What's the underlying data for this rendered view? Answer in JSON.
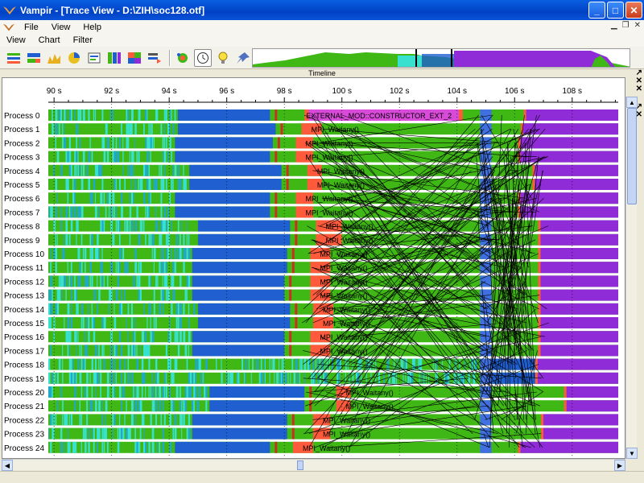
{
  "window": {
    "title": "Vampir - [Trace View - D:\\ZIH\\soc128.otf]"
  },
  "menubar_top": {
    "items": [
      "File",
      "View",
      "Help"
    ]
  },
  "menubar_chart": {
    "items": [
      "View",
      "Chart",
      "Filter"
    ]
  },
  "toolbar": {
    "buttons": [
      {
        "name": "master-timeline-icon",
        "glyph": "▤"
      },
      {
        "name": "process-timeline-icon",
        "glyph": "▦"
      },
      {
        "name": "counter-timeline-icon",
        "glyph": "▥"
      },
      {
        "name": "function-summary-icon",
        "glyph": "◕"
      },
      {
        "name": "message-summary-icon",
        "glyph": "▣"
      },
      {
        "name": "process-summary-icon",
        "glyph": "▤"
      },
      {
        "name": "communication-matrix-icon",
        "glyph": "▦"
      },
      {
        "name": "io-events-icon",
        "glyph": "▧"
      },
      {
        "name": "call-tree-icon",
        "glyph": "✿"
      },
      {
        "name": "clock-icon",
        "glyph": "◷"
      },
      {
        "name": "lightbulb-icon",
        "glyph": "☀"
      },
      {
        "name": "pin-icon",
        "glyph": "✎"
      }
    ]
  },
  "timeline_panel": {
    "title": "Timeline"
  },
  "time_axis": {
    "unit": "s",
    "ticks": [
      "90 s",
      "92 s",
      "94 s",
      "96 s",
      "98 s",
      "100 s",
      "102 s",
      "104 s",
      "106 s",
      "108 s"
    ],
    "start": 89.8,
    "end": 109.6
  },
  "colors": {
    "application": "#3fb816",
    "mpi": "#ff5a3c",
    "compute_blue": "#1f5fd0",
    "external": "#d84ad8",
    "purple": "#8f2cd8",
    "cyan": "#38e0d0",
    "message_line": "#000000"
  },
  "labels": {
    "external_mod": "EXTERNAL_MOD::CONSTRUCTOR_EXT_2",
    "waitany": "MPI_Waitany()"
  },
  "processes": [
    {
      "name": "Process 0",
      "blue": [
        94.3,
        97.5
      ],
      "mpi": [
        98.7,
        104.2
      ],
      "label": "EXTERNAL_MOD::CONSTRUCTOR_EXT_2",
      "purple": 106.4
    },
    {
      "name": "Process 1",
      "blue": [
        94.3,
        97.7
      ],
      "mpi": [
        98.6,
        99.3
      ],
      "label": "MPI_Waitany()",
      "purple": 106.3
    },
    {
      "name": "Process 2",
      "blue": [
        94.2,
        97.6
      ],
      "mpi": [
        98.4,
        99.0
      ],
      "label": "MPI_Waitany()",
      "purple": 106.2
    },
    {
      "name": "Process 3",
      "blue": [
        94.2,
        97.5
      ],
      "mpi": [
        98.4,
        99.0
      ],
      "label": "MPI_Waitany()",
      "purple": 106.2
    },
    {
      "name": "Process 4",
      "blue": [
        94.7,
        97.9
      ],
      "mpi": [
        98.8,
        99.3
      ],
      "label": "MPI_Waitany()",
      "purple": 106.7
    },
    {
      "name": "Process 5",
      "blue": [
        94.7,
        97.9
      ],
      "mpi": [
        98.8,
        99.3
      ],
      "label": "MPI_Waitany()",
      "purple": 106.7
    },
    {
      "name": "Process 6",
      "blue": [
        94.2,
        97.5
      ],
      "mpi": [
        98.4,
        99.0
      ],
      "label": "MPI_Waitany()",
      "purple": 106.2
    },
    {
      "name": "Process 7",
      "blue": [
        94.2,
        97.5
      ],
      "mpi": [
        98.4,
        99.0
      ],
      "label": "MPI_Waitany()",
      "purple": 106.2
    },
    {
      "name": "Process 8",
      "blue": [
        95.0,
        98.2
      ],
      "mpi": [
        99.1,
        100.0
      ],
      "label": "MPI_Waitany()",
      "purple": 106.9
    },
    {
      "name": "Process 9",
      "blue": [
        95.0,
        98.2
      ],
      "mpi": [
        99.1,
        100.0
      ],
      "label": "MPI_Waitany()",
      "purple": 106.9
    },
    {
      "name": "Process 10",
      "blue": [
        94.8,
        98.1
      ],
      "mpi": [
        98.9,
        99.6
      ],
      "label": "MPI_Waitany()",
      "purple": 106.9
    },
    {
      "name": "Process 11",
      "blue": [
        94.8,
        98.1
      ],
      "mpi": [
        98.9,
        99.6
      ],
      "label": "MPI_Waitany()",
      "purple": 106.9
    },
    {
      "name": "Process 12",
      "blue": [
        94.8,
        98.0
      ],
      "mpi": [
        98.9,
        99.6
      ],
      "label": "MPI_Waitany()",
      "purple": 106.9
    },
    {
      "name": "Process 13",
      "blue": [
        94.8,
        98.0
      ],
      "mpi": [
        98.9,
        99.6
      ],
      "label": "MPI_Waitany()",
      "purple": 106.9
    },
    {
      "name": "Process 14",
      "blue": [
        95.0,
        98.2
      ],
      "mpi": [
        99.0,
        99.7
      ],
      "label": "MPI_Waitany()",
      "purple": 106.9
    },
    {
      "name": "Process 15",
      "blue": [
        95.0,
        98.2
      ],
      "mpi": [
        99.0,
        99.7
      ],
      "label": "MPI_Waitany()",
      "purple": 106.9
    },
    {
      "name": "Process 16",
      "blue": [
        94.8,
        98.0
      ],
      "mpi": [
        98.9,
        99.6
      ],
      "label": "MPI_Waitany()",
      "purple": 106.9
    },
    {
      "name": "Process 17",
      "blue": [
        94.8,
        98.0
      ],
      "mpi": [
        98.9,
        99.6
      ],
      "label": "MPI_Waitany()",
      "purple": 106.9
    },
    {
      "name": "Process 18",
      "blue": [
        104.8,
        106.8
      ],
      "mpi": [
        107.9,
        108.3
      ],
      "label": "",
      "purple": 106.8
    },
    {
      "name": "Process 19",
      "blue": [
        104.8,
        106.8
      ],
      "mpi": [
        107.9,
        108.3
      ],
      "label": "",
      "purple": 106.8
    },
    {
      "name": "Process 20",
      "blue": [
        95.4,
        98.7
      ],
      "mpi": [
        99.8,
        100.3
      ],
      "label": "MPI_Waitany()",
      "purple": 107.8
    },
    {
      "name": "Process 21",
      "blue": [
        95.4,
        98.7
      ],
      "mpi": [
        99.8,
        100.3
      ],
      "label": "MPI_Waitany()",
      "purple": 107.8
    },
    {
      "name": "Process 22",
      "blue": [
        94.8,
        98.1
      ],
      "mpi": [
        99.0,
        99.6
      ],
      "label": "MPI_Waitany()",
      "purple": 107.0
    },
    {
      "name": "Process 23",
      "blue": [
        94.8,
        98.1
      ],
      "mpi": [
        99.0,
        99.6
      ],
      "label": "MPI_Waitany()",
      "purple": 107.0
    },
    {
      "name": "Process 24",
      "blue": [
        94.2,
        97.5
      ],
      "mpi": [
        98.3,
        99.0
      ],
      "label": "MPI_Waitany()",
      "purple": 106.2
    }
  ]
}
